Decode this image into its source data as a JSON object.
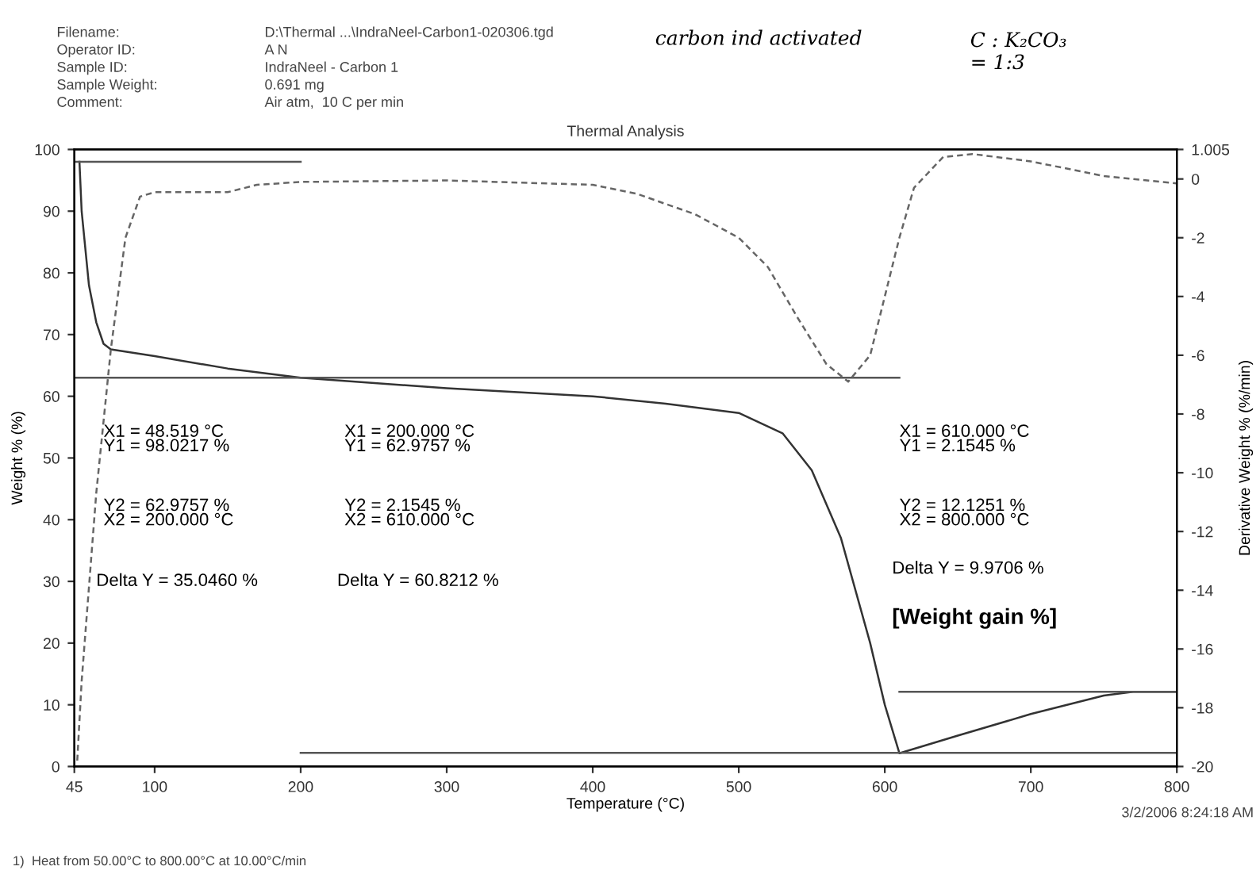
{
  "chart_data": {
    "type": "line",
    "title": "Thermal Analysis",
    "xlabel": "Temperature (°C)",
    "ylabel": "Weight % (%)",
    "y2label": "Derivative Weight % (%/min)",
    "xlim": [
      45,
      800
    ],
    "xticks": [
      45,
      100,
      200,
      300,
      400,
      500,
      600,
      700,
      800
    ],
    "ylim": [
      0,
      100
    ],
    "yticks": [
      0,
      10,
      20,
      30,
      40,
      50,
      60,
      70,
      80,
      90,
      100
    ],
    "y2lim": [
      -20,
      1.005
    ],
    "y2ticks": [
      -20,
      -18,
      -16,
      -14,
      -12,
      -10,
      -8,
      -6,
      -4,
      -2,
      0,
      1.005
    ],
    "grid": false,
    "legend": false,
    "series": [
      {
        "color": "#333333",
        "line_style": "solid",
        "x": [
          48.5,
          50,
          55,
          60,
          65,
          70,
          100,
          150,
          200,
          300,
          400,
          450,
          500,
          530,
          550,
          570,
          590,
          600,
          610,
          650,
          700,
          750,
          770,
          800
        ],
        "values": [
          98.0,
          90,
          78,
          72,
          68.5,
          67.6,
          66.5,
          64.5,
          63,
          61.3,
          60,
          58.8,
          57.3,
          54,
          48,
          37,
          20,
          10,
          2.15,
          5,
          8.5,
          11.5,
          12.1,
          12.1
        ]
      },
      {
        "color": "#666666",
        "line_style": "dashed",
        "axis": "y2",
        "x": [
          47,
          50,
          60,
          70,
          80,
          90,
          100,
          150,
          170,
          200,
          300,
          400,
          430,
          470,
          500,
          520,
          540,
          560,
          575,
          590,
          600,
          610,
          620,
          640,
          660,
          700,
          750,
          800
        ],
        "values": [
          -19.8,
          -17.1,
          -10.7,
          -5.8,
          -2.0,
          -0.6,
          -0.45,
          -0.45,
          -0.2,
          -0.1,
          -0.05,
          -0.2,
          -0.5,
          -1.2,
          -2.0,
          -3.0,
          -4.7,
          -6.3,
          -6.9,
          -6.0,
          -4.0,
          -2.0,
          -0.3,
          0.75,
          0.85,
          0.6,
          0.1,
          -0.15
        ]
      },
      {
        "color": "#555555",
        "line_style": "solid",
        "x": [
          45,
          200
        ],
        "values": [
          98,
          98
        ]
      },
      {
        "color": "#555555",
        "line_style": "solid",
        "x": [
          45,
          610
        ],
        "values": [
          63,
          63
        ]
      },
      {
        "color": "#555555",
        "line_style": "solid",
        "x": [
          200,
          800
        ],
        "values": [
          2.2,
          2.2
        ]
      },
      {
        "color": "#555555",
        "line_style": "solid",
        "x": [
          610,
          800
        ],
        "values": [
          12.1,
          12.1
        ]
      }
    ],
    "annotations": [
      "Filename:",
      "D:\\Thermal ...\\IndraNeel-Carbon1-020306.tgd",
      "Operator ID:",
      "A N",
      "Sample ID:",
      "IndraNeel - Carbon 1",
      "Sample Weight:",
      "0.691 mg",
      "Comment:",
      "Air atm,  10 C per min",
      "carbon ind activated",
      "C : K₂CO₃\n= 1:3",
      "X1 = 48.519 °C\nY1 = 98.0217 %",
      "Y2 = 62.9757 %\nX2 = 200.000 °C",
      "Delta Y = 35.0460 %",
      "X1 = 200.000 °C\nY1 = 62.9757 %",
      "Y2 = 2.1545 %\nX2 = 610.000 °C",
      "Delta Y = 60.8212 %",
      "X1 = 610.000 °C\nY1 = 2.1545 %",
      "Y2 = 12.1251 %\nX2 = 800.000 °C",
      "Delta Y = 9.9706 %",
      "[Weight gain %]",
      "3/2/2006 8:24:18 AM",
      "1)  Heat from 50.00°C to 800.00°C at 10.00°C/min"
    ]
  }
}
